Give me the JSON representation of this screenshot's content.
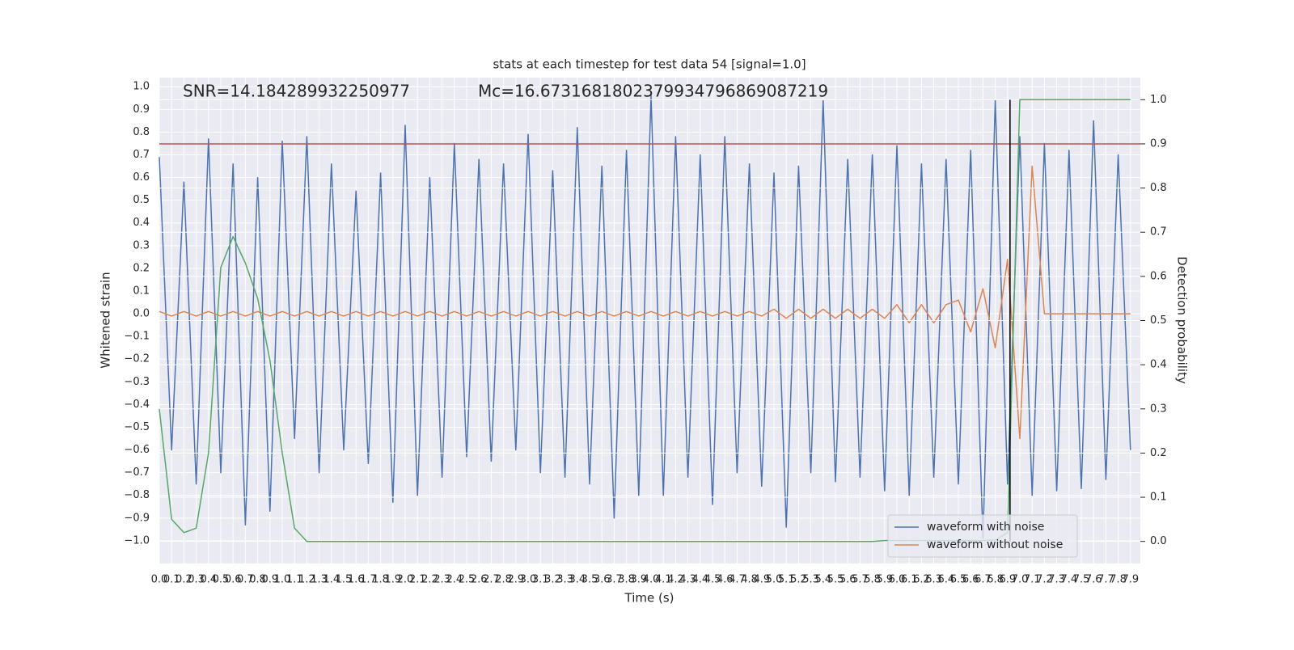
{
  "chart_data": {
    "type": "line",
    "title": "stats at each timestep for test data 54 [signal=1.0]",
    "x_label": "Time (s)",
    "y_label": "Whitened strain",
    "y2_label": "Detection probability",
    "annotations": [
      "SNR=14.184289932250977",
      "Mc=16.6731681802379934796869087219"
    ],
    "grid": true,
    "legend": "lower right",
    "xlim": [
      0,
      7.98
    ],
    "ylim": [
      -1.1,
      1.04
    ],
    "y2lim": [
      -0.05,
      1.05
    ],
    "xticks": [
      {
        "value": 0,
        "label": "0.0"
      },
      0.1,
      0.2,
      0.3,
      0.4,
      0.5,
      0.6,
      0.7,
      0.8,
      0.9,
      {
        "value": 1,
        "label": "1.0"
      },
      1.1,
      1.2,
      1.3,
      1.4,
      1.5,
      1.6,
      1.7,
      1.8,
      1.9,
      {
        "value": 2,
        "label": "2.0"
      },
      2.1,
      2.2,
      2.3,
      2.4,
      2.5,
      2.6,
      2.7,
      2.8,
      2.9,
      {
        "value": 3,
        "label": "3.0"
      },
      3.1,
      3.2,
      3.3,
      3.4,
      3.5,
      3.6,
      3.7,
      3.8,
      3.9,
      {
        "value": 4,
        "label": "4.0"
      },
      4.1,
      4.2,
      4.3,
      4.4,
      4.5,
      4.6,
      4.7,
      4.8,
      4.9,
      {
        "value": 5,
        "label": "5.0"
      },
      5.1,
      5.2,
      5.3,
      5.4,
      5.5,
      5.6,
      5.7,
      5.8,
      5.9,
      {
        "value": 6,
        "label": "6.0"
      },
      6.1,
      6.2,
      6.3,
      6.4,
      6.5,
      6.6,
      6.7,
      6.8,
      6.9,
      {
        "value": 7,
        "label": "7.0"
      },
      7.1,
      7.2,
      7.3,
      7.4,
      7.5,
      7.6,
      7.7,
      7.8,
      7.9
    ],
    "yticks": [
      {
        "value": -1,
        "label": "−1.0"
      },
      {
        "value": -0.9,
        "label": "−0.9"
      },
      {
        "value": -0.8,
        "label": "−0.8"
      },
      {
        "value": -0.7,
        "label": "−0.7"
      },
      {
        "value": -0.6,
        "label": "−0.6"
      },
      {
        "value": -0.5,
        "label": "−0.5"
      },
      {
        "value": -0.4,
        "label": "−0.4"
      },
      {
        "value": -0.3,
        "label": "−0.3"
      },
      {
        "value": -0.2,
        "label": "−0.2"
      },
      {
        "value": -0.1,
        "label": "−0.1"
      },
      {
        "value": 0,
        "label": "0.0"
      },
      0.1,
      0.2,
      0.3,
      0.4,
      0.5,
      0.6,
      0.7,
      0.8,
      0.9,
      {
        "value": 1,
        "label": "1.0"
      }
    ],
    "y2ticks": [
      {
        "value": 0,
        "label": "0.0"
      },
      0.1,
      0.2,
      0.3,
      0.4,
      0.5,
      0.6,
      0.7,
      0.8,
      0.9,
      {
        "value": 1,
        "label": "1.0"
      }
    ],
    "x": [
      0,
      0.1,
      0.2,
      0.3,
      0.4,
      0.5,
      0.6,
      0.7,
      0.8,
      0.9,
      1.0,
      1.1,
      1.2,
      1.3,
      1.4,
      1.5,
      1.6,
      1.7,
      1.8,
      1.9,
      2.0,
      2.1,
      2.2,
      2.3,
      2.4,
      2.5,
      2.6,
      2.7,
      2.8,
      2.9,
      3.0,
      3.1,
      3.2,
      3.3,
      3.4,
      3.5,
      3.6,
      3.7,
      3.8,
      3.9,
      4.0,
      4.1,
      4.2,
      4.3,
      4.4,
      4.5,
      4.6,
      4.7,
      4.8,
      4.9,
      5.0,
      5.1,
      5.2,
      5.3,
      5.4,
      5.5,
      5.6,
      5.7,
      5.8,
      5.9,
      6.0,
      6.1,
      6.2,
      6.3,
      6.4,
      6.5,
      6.6,
      6.7,
      6.8,
      6.9,
      7.0,
      7.1,
      7.2,
      7.3,
      7.4,
      7.5,
      7.6,
      7.7,
      7.8,
      7.9
    ],
    "series": [
      {
        "name": "waveform with noise",
        "color": "#4c72b0",
        "axis": "y",
        "values": [
          0.69,
          -0.6,
          0.58,
          -0.75,
          0.77,
          -0.7,
          0.66,
          -0.93,
          0.6,
          -0.87,
          0.76,
          -0.55,
          0.78,
          -0.7,
          0.66,
          -0.6,
          0.54,
          -0.66,
          0.62,
          -0.83,
          0.83,
          -0.8,
          0.6,
          -0.72,
          0.75,
          -0.63,
          0.68,
          -0.65,
          0.66,
          -0.6,
          0.79,
          -0.7,
          0.63,
          -0.72,
          0.82,
          -0.75,
          0.65,
          -0.9,
          0.72,
          -0.8,
          0.96,
          -0.8,
          0.78,
          -0.72,
          0.7,
          -0.84,
          0.78,
          -0.7,
          0.66,
          -0.76,
          0.62,
          -0.94,
          0.65,
          -0.7,
          0.94,
          -0.74,
          0.68,
          -0.72,
          0.7,
          -0.78,
          0.74,
          -0.8,
          0.66,
          -0.72,
          0.68,
          -0.75,
          0.72,
          -0.99,
          0.94,
          -0.75,
          0.78,
          -0.8,
          0.75,
          -0.78,
          0.72,
          -0.77,
          0.85,
          -0.73,
          0.7,
          -0.6
        ]
      },
      {
        "name": "waveform without noise",
        "color": "#dd8452",
        "axis": "y",
        "values": [
          0.01,
          -0.01,
          0.01,
          -0.01,
          0.01,
          -0.01,
          0.01,
          -0.01,
          0.01,
          -0.01,
          0.01,
          -0.01,
          0.01,
          -0.01,
          0.01,
          -0.01,
          0.01,
          -0.01,
          0.01,
          -0.01,
          0.01,
          -0.01,
          0.01,
          -0.01,
          0.01,
          -0.01,
          0.01,
          -0.01,
          0.01,
          -0.01,
          0.01,
          -0.01,
          0.01,
          -0.01,
          0.01,
          -0.01,
          0.01,
          -0.01,
          0.01,
          -0.01,
          0.01,
          -0.01,
          0.01,
          -0.01,
          0.01,
          -0.01,
          0.01,
          -0.01,
          0.01,
          -0.01,
          0.02,
          -0.02,
          0.02,
          -0.02,
          0.02,
          -0.02,
          0.02,
          -0.02,
          0.02,
          -0.02,
          0.04,
          -0.04,
          0.04,
          -0.04,
          0.04,
          0.06,
          -0.08,
          0.11,
          -0.15,
          0.24,
          -0.55,
          0.65,
          0,
          0,
          0,
          0,
          0,
          0,
          0,
          0
        ]
      },
      {
        "color": "#55a868",
        "axis": "y2",
        "values": [
          0.3,
          0.05,
          0.02,
          0.03,
          0.2,
          0.62,
          0.69,
          0.63,
          0.55,
          0.41,
          0.2,
          0.03,
          0,
          0,
          0,
          0,
          0,
          0,
          0,
          0,
          0,
          0,
          0,
          0,
          0,
          0,
          0,
          0,
          0,
          0,
          0,
          0,
          0,
          0,
          0,
          0,
          0,
          0,
          0,
          0,
          0,
          0,
          0,
          0,
          0,
          0,
          0,
          0,
          0,
          0,
          0,
          0,
          0,
          0,
          0,
          0,
          0,
          0,
          0,
          0.002,
          0.002,
          0.002,
          0.002,
          0.002,
          0.002,
          0.002,
          0.002,
          0.002,
          0.003,
          0.02,
          1.0,
          1.0,
          1.0,
          1.0,
          1.0,
          1.0,
          1.0,
          1.0,
          1.0,
          1.0
        ]
      }
    ],
    "hlines": [
      {
        "value": 0.9,
        "axis": "y2",
        "color": "#c44e52"
      }
    ],
    "vlines": [
      {
        "x": 6.92,
        "ymin": 0,
        "ymax": 1.0,
        "axis": "y2",
        "color": "#000000"
      }
    ]
  }
}
